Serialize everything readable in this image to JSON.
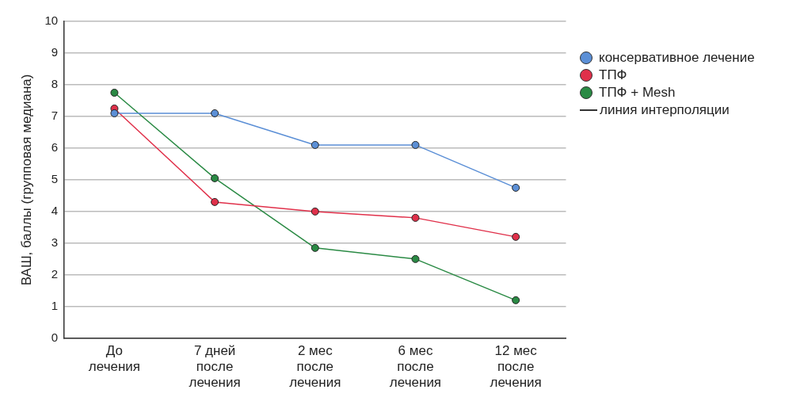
{
  "chart_data": {
    "type": "line",
    "ylabel": "ВАШ, баллы (групповая медиана)",
    "categories": [
      "До лечения",
      "7 дней после лечения",
      "2 мес после лечения",
      "6 мес после лечения",
      "12 мес после лечения"
    ],
    "series": [
      {
        "name": "консервативное лечение",
        "color": "#5b8fd6",
        "values": [
          7.1,
          7.1,
          6.1,
          6.1,
          4.75
        ]
      },
      {
        "name": "ТПФ",
        "color": "#e0304a",
        "values": [
          7.25,
          4.3,
          4.0,
          3.8,
          3.2
        ]
      },
      {
        "name": "ТПФ + Mesh",
        "color": "#2a8a44",
        "values": [
          7.75,
          5.05,
          2.85,
          2.5,
          1.2
        ]
      }
    ],
    "ylim": [
      0,
      10
    ],
    "yticks": [
      0,
      1,
      2,
      3,
      4,
      5,
      6,
      7,
      8,
      9,
      10
    ],
    "grid": "y",
    "legend": "right",
    "marker": "circle",
    "line_style": "solid",
    "annotations": [
      "линия интерполяции"
    ]
  }
}
